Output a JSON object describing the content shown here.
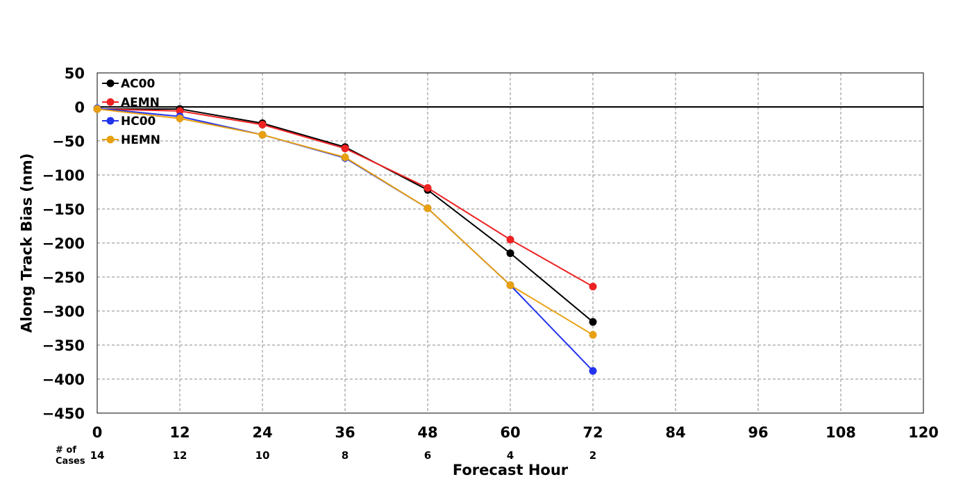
{
  "chart_data": {
    "type": "line",
    "title": "",
    "xlabel": "Forecast Hour",
    "ylabel": "Along Track Bias (nm)",
    "xlim": [
      0,
      120
    ],
    "ylim": [
      -450,
      50
    ],
    "xticks": [
      0,
      12,
      24,
      36,
      48,
      60,
      72,
      84,
      96,
      108,
      120
    ],
    "yticks": [
      50,
      0,
      -50,
      -100,
      -150,
      -200,
      -250,
      -300,
      -350,
      -400,
      -450
    ],
    "grid": true,
    "legend_position": "top-left",
    "cases_label": [
      "# of",
      "Cases"
    ],
    "cases": [
      {
        "x": 0,
        "n": "14"
      },
      {
        "x": 12,
        "n": "12"
      },
      {
        "x": 24,
        "n": "10"
      },
      {
        "x": 36,
        "n": "8"
      },
      {
        "x": 48,
        "n": "6"
      },
      {
        "x": 60,
        "n": "4"
      },
      {
        "x": 72,
        "n": "2"
      }
    ],
    "series": [
      {
        "name": "AC00",
        "color": "#000000",
        "x": [
          0,
          12,
          24,
          36,
          48,
          60,
          72
        ],
        "values": [
          -3,
          -3,
          -24,
          -59,
          -122,
          -215,
          -316
        ]
      },
      {
        "name": "AEMN",
        "color": "#ee2222",
        "x": [
          0,
          12,
          24,
          36,
          48,
          60,
          72
        ],
        "values": [
          -3,
          -6,
          -26,
          -61,
          -119,
          -195,
          -264
        ]
      },
      {
        "name": "HC00",
        "color": "#2233ee",
        "x": [
          0,
          12,
          24,
          36,
          48,
          60,
          72
        ],
        "values": [
          -2,
          -14,
          -41,
          -75,
          -149,
          -262,
          -388
        ]
      },
      {
        "name": "HEMN",
        "color": "#e8a010",
        "x": [
          0,
          12,
          24,
          36,
          48,
          60,
          72
        ],
        "values": [
          -3,
          -17,
          -41,
          -74,
          -149,
          -262,
          -335
        ]
      }
    ]
  }
}
